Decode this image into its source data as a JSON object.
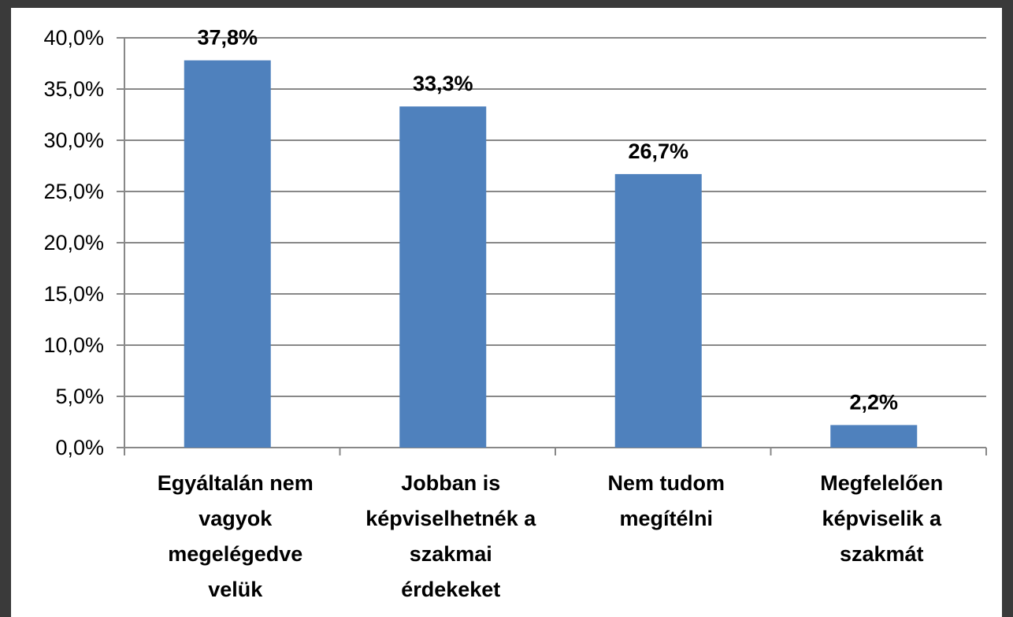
{
  "chart_data": {
    "type": "bar",
    "categories": [
      [
        "Egyáltalán nem",
        "vagyok",
        "megelégedve",
        "velük"
      ],
      [
        "Jobban is",
        "képviselhetnék a",
        "szakmai",
        "érdekeket"
      ],
      [
        "Nem tudom",
        "megítélni"
      ],
      [
        "Megfelelően",
        "képviselik a",
        "szakmát"
      ]
    ],
    "values": [
      37.8,
      33.3,
      26.7,
      2.2
    ],
    "data_labels": [
      "37,8%",
      "33,3%",
      "26,7%",
      "2,2%"
    ],
    "yticks": [
      "0,0%",
      "5,0%",
      "10,0%",
      "15,0%",
      "20,0%",
      "25,0%",
      "30,0%",
      "35,0%",
      "40,0%"
    ],
    "ylim": [
      0,
      40
    ],
    "grid": true,
    "bar_color": "#4f81bd",
    "grid_color": "#888888"
  }
}
